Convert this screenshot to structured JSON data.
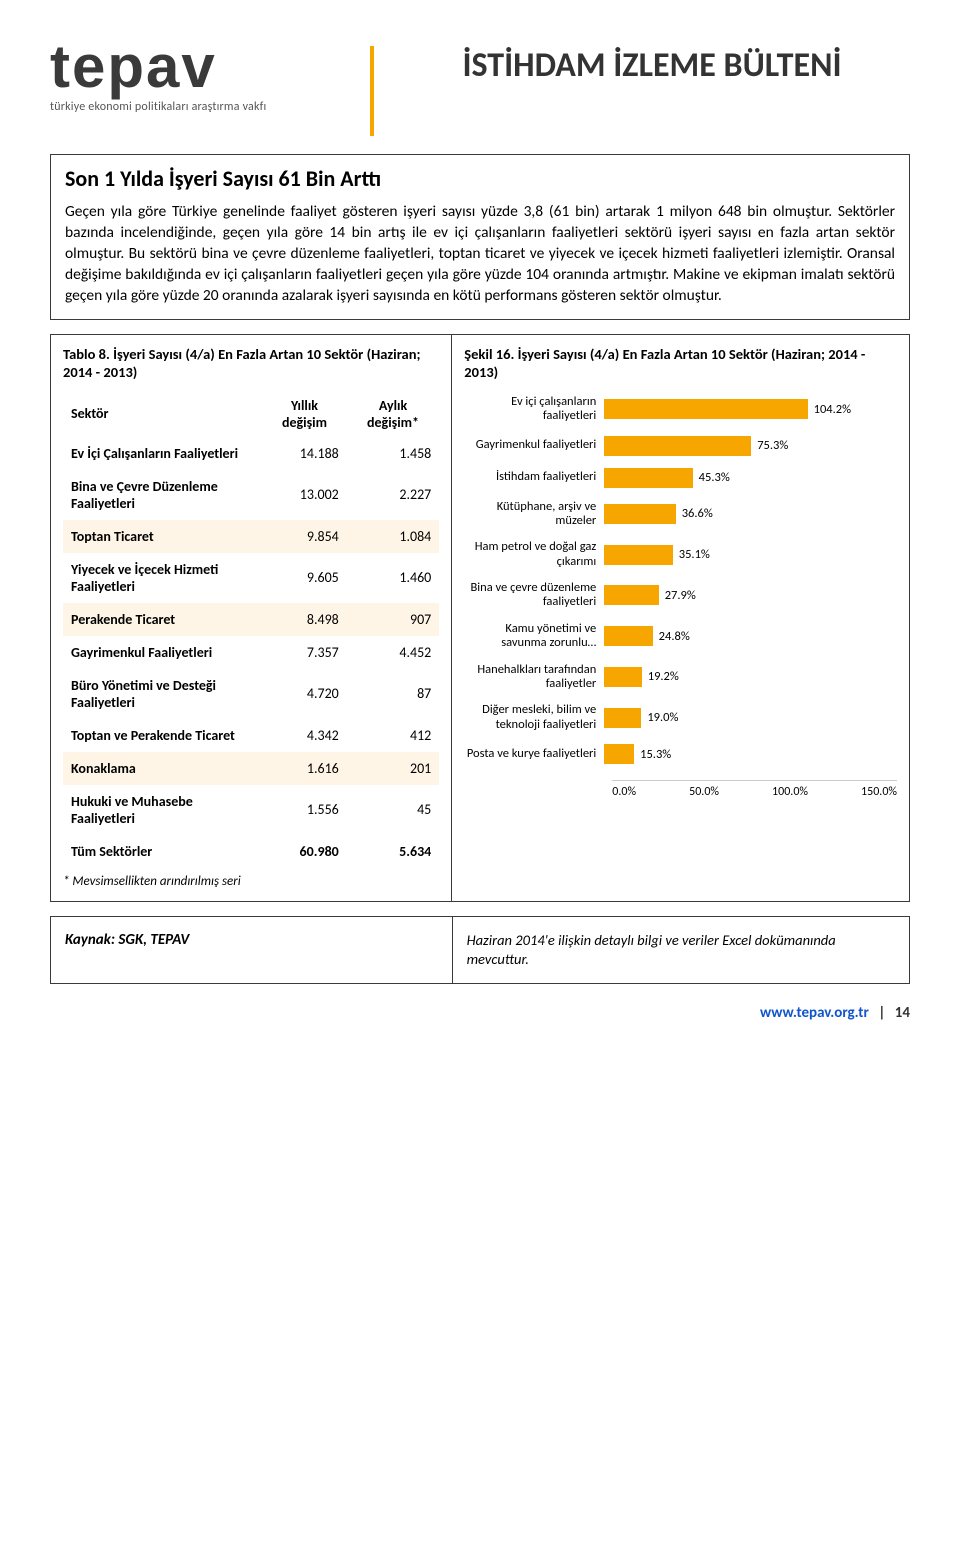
{
  "logo": {
    "text": "tepav",
    "subtitle": "türkiye ekonomi politikaları araştırma vakfı"
  },
  "header_title": "İSTİHDAM İZLEME BÜLTENİ",
  "section": {
    "title": "Son 1 Yılda İşyeri Sayısı 61 Bin Arttı",
    "body": "Geçen yıla göre Türkiye genelinde faaliyet gösteren işyeri sayısı yüzde 3,8 (61 bin) artarak 1 milyon 648 bin olmuştur. Sektörler bazında incelendiğinde, geçen yıla göre 14 bin artış ile ev içi çalışanların faaliyetleri sektörü işyeri sayısı en fazla artan sektör olmuştur. Bu sektörü bina ve çevre düzenleme faaliyetleri, toptan ticaret ve yiyecek ve içecek hizmeti faaliyetleri izlemiştir. Oransal değişime bakıldığında ev içi çalışanların faaliyetleri geçen yıla göre yüzde 104 oranında artmıştır. Makine ve ekipman imalatı sektörü geçen yıla göre yüzde 20 oranında azalarak işyeri sayısında en kötü performans gösteren sektör olmuştur."
  },
  "table": {
    "title": "Tablo 8. İşyeri Sayısı (4/a) En Fazla Artan 10 Sektör (Haziran; 2014 - 2013)",
    "columns": [
      "Sektör",
      "Yıllık değişim",
      "Aylık değişim*"
    ],
    "rows": [
      {
        "label": "Ev İçi Çalışanların Faaliyetleri",
        "annual": "14.188",
        "monthly": "1.458"
      },
      {
        "label": "Bina ve Çevre Düzenleme Faaliyetleri",
        "annual": "13.002",
        "monthly": "2.227"
      },
      {
        "label": "Toptan Ticaret",
        "annual": "9.854",
        "monthly": "1.084"
      },
      {
        "label": "Yiyecek ve İçecek Hizmeti Faaliyetleri",
        "annual": "9.605",
        "monthly": "1.460"
      },
      {
        "label": "Perakende Ticaret",
        "annual": "8.498",
        "monthly": "907"
      },
      {
        "label": "Gayrimenkul Faaliyetleri",
        "annual": "7.357",
        "monthly": "4.452"
      },
      {
        "label": "Büro Yönetimi ve Desteği Faaliyetleri",
        "annual": "4.720",
        "monthly": "87"
      },
      {
        "label": "Toptan ve Perakende Ticaret",
        "annual": "4.342",
        "monthly": "412"
      },
      {
        "label": "Konaklama",
        "annual": "1.616",
        "monthly": "201"
      },
      {
        "label": "Hukuki ve Muhasebe Faaliyetleri",
        "annual": "1.556",
        "monthly": "45"
      }
    ],
    "total": {
      "label": "Tüm Sektörler",
      "annual": "60.980",
      "monthly": "5.634"
    },
    "footnote": "* Mevsimsellikten arındırılmış seri",
    "alt_bg": "#fef5e6"
  },
  "chart": {
    "title": "Şekil 16. İşyeri Sayısı (4/a) En Fazla Artan 10 Sektör (Haziran; 2014 - 2013)",
    "type": "bar",
    "bar_color": "#f7a600",
    "background_color": "#ffffff",
    "xlim": [
      0,
      150
    ],
    "xtick_labels": [
      "0.0%",
      "50.0%",
      "100.0%",
      "150.0%"
    ],
    "label_fontsize": 12.5,
    "bars": [
      {
        "label": "Ev içi çalışanların faaliyetleri",
        "value": 104.2,
        "display": "104.2%"
      },
      {
        "label": "Gayrimenkul faaliyetleri",
        "value": 75.3,
        "display": "75.3%"
      },
      {
        "label": "İstihdam faaliyetleri",
        "value": 45.3,
        "display": "45.3%"
      },
      {
        "label": "Kütüphane, arşiv ve müzeler",
        "value": 36.6,
        "display": "36.6%"
      },
      {
        "label": "Ham petrol ve doğal gaz çıkarımı",
        "value": 35.1,
        "display": "35.1%"
      },
      {
        "label": "Bina ve çevre düzenleme faaliyetleri",
        "value": 27.9,
        "display": "27.9%"
      },
      {
        "label": "Kamu yönetimi ve savunma zorunlu…",
        "value": 24.8,
        "display": "24.8%"
      },
      {
        "label": "Hanehalkları tarafından faaliyetler",
        "value": 19.2,
        "display": "19.2%"
      },
      {
        "label": "Diğer mesleki, bilim ve teknoloji faaliyetleri",
        "value": 19.0,
        "display": "19.0%"
      },
      {
        "label": "Posta ve kurye faaliyetleri",
        "value": 15.3,
        "display": "15.3%"
      }
    ]
  },
  "source": {
    "left": "Kaynak: SGK, TEPAV",
    "right": "Haziran 2014'e ilişkin detaylı bilgi ve veriler Excel dokümanında mevcuttur."
  },
  "footer": {
    "url": "www.tepav.org.tr",
    "page": "14"
  }
}
